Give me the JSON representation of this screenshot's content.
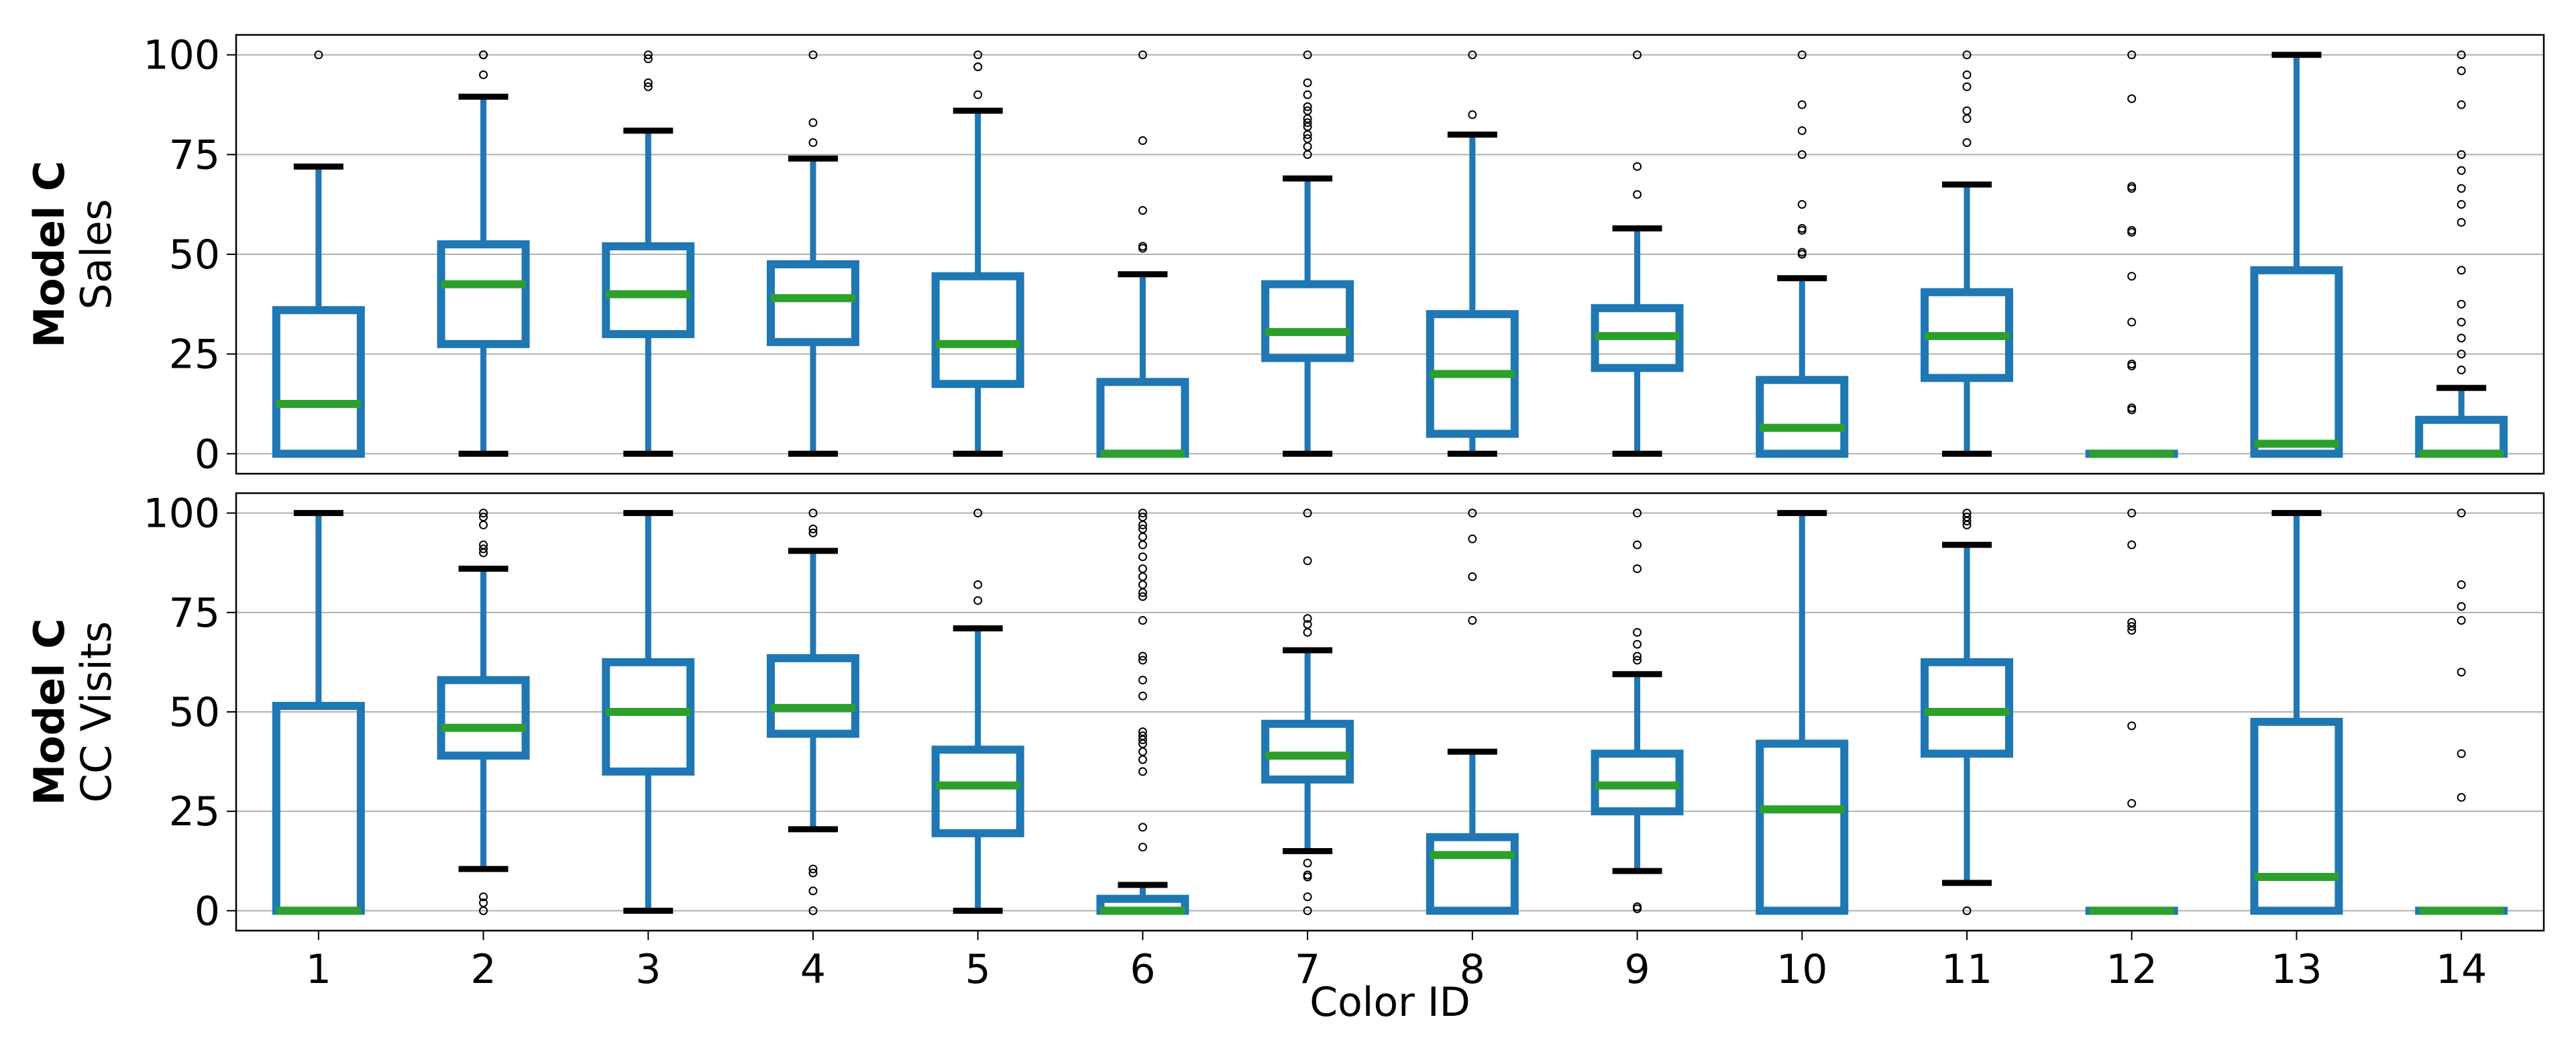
{
  "chart_data": {
    "type": "boxplot",
    "xlabel": "Color ID",
    "categories": [
      "1",
      "2",
      "3",
      "4",
      "5",
      "6",
      "7",
      "8",
      "9",
      "10",
      "11",
      "12",
      "13",
      "14"
    ],
    "ylim": [
      -5,
      105
    ],
    "yticks": [
      0,
      25,
      50,
      75,
      100
    ],
    "colors": {
      "box": "#1f77b4",
      "median": "#2ca02c",
      "cap": "#000000",
      "grid": "#b0b0b0"
    },
    "panels": [
      {
        "name": "sales",
        "ylabel_bold": "Model C",
        "ylabel": "Sales",
        "boxes": [
          {
            "category": "1",
            "whislo": 0,
            "q1": 0,
            "med": 12.5,
            "q3": 36,
            "whishi": 72,
            "fliers": [
              100
            ]
          },
          {
            "category": "2",
            "whislo": 0,
            "q1": 27.5,
            "med": 42.5,
            "q3": 52.5,
            "whishi": 89.5,
            "fliers": [
              95,
              100,
              100
            ]
          },
          {
            "category": "3",
            "whislo": 0,
            "q1": 30,
            "med": 40,
            "q3": 52,
            "whishi": 81,
            "fliers": [
              92,
              93,
              99,
              100
            ]
          },
          {
            "category": "4",
            "whislo": 0,
            "q1": 28,
            "med": 39,
            "q3": 47.5,
            "whishi": 74,
            "fliers": [
              78,
              83,
              100
            ]
          },
          {
            "category": "5",
            "whislo": 0,
            "q1": 17.5,
            "med": 27.5,
            "q3": 44.5,
            "whishi": 86,
            "fliers": [
              90,
              97,
              97,
              100
            ]
          },
          {
            "category": "6",
            "whislo": 0,
            "q1": 0,
            "med": 0,
            "q3": 18,
            "whishi": 45,
            "fliers": [
              51.5,
              52,
              61,
              78.5,
              100
            ]
          },
          {
            "category": "7",
            "whislo": 0,
            "q1": 24,
            "med": 30.5,
            "q3": 42.5,
            "whishi": 69,
            "fliers": [
              75,
              77,
              79,
              80,
              82,
              83,
              84,
              86,
              87,
              90,
              93,
              100
            ]
          },
          {
            "category": "8",
            "whislo": 0,
            "q1": 5,
            "med": 20,
            "q3": 35,
            "whishi": 80,
            "fliers": [
              85,
              100
            ]
          },
          {
            "category": "9",
            "whislo": 0,
            "q1": 21.5,
            "med": 29.5,
            "q3": 36.5,
            "whishi": 56.5,
            "fliers": [
              65,
              72,
              100
            ]
          },
          {
            "category": "10",
            "whislo": 0,
            "q1": 0,
            "med": 6.5,
            "q3": 18.5,
            "whishi": 44,
            "fliers": [
              50,
              50.5,
              56,
              56.5,
              62.5,
              75,
              81,
              87.5,
              100
            ]
          },
          {
            "category": "11",
            "whislo": 0,
            "q1": 19,
            "med": 29.5,
            "q3": 40.5,
            "whishi": 67.5,
            "fliers": [
              78,
              84,
              86,
              92,
              95,
              100
            ]
          },
          {
            "category": "12",
            "whislo": 0,
            "q1": 0,
            "med": 0,
            "q3": 0,
            "whishi": 0,
            "fliers": [
              11,
              11.5,
              22,
              22.5,
              33,
              44.5,
              55.5,
              56,
              66.5,
              67,
              89,
              100
            ]
          },
          {
            "category": "13",
            "whislo": 0,
            "q1": 0,
            "med": 2.5,
            "q3": 46,
            "whishi": 100,
            "fliers": []
          },
          {
            "category": "14",
            "whislo": 0,
            "q1": 0,
            "med": 0,
            "q3": 8.5,
            "whishi": 16.5,
            "fliers": [
              21,
              25,
              29,
              33,
              37.5,
              46,
              58,
              62.5,
              66.5,
              71,
              75,
              87.5,
              96,
              100
            ]
          }
        ]
      },
      {
        "name": "cc_visits",
        "ylabel_bold": "Model C",
        "ylabel": "CC Visits",
        "boxes": [
          {
            "category": "1",
            "whislo": 0,
            "q1": 0,
            "med": 0,
            "q3": 51.5,
            "whishi": 100,
            "fliers": []
          },
          {
            "category": "2",
            "whislo": 10.5,
            "q1": 39,
            "med": 46,
            "q3": 58,
            "whishi": 86,
            "fliers": [
              0,
              2,
              3.5,
              90,
              91,
              92,
              97,
              99,
              100
            ]
          },
          {
            "category": "3",
            "whislo": 0,
            "q1": 35,
            "med": 50,
            "q3": 62.5,
            "whishi": 100,
            "fliers": []
          },
          {
            "category": "4",
            "whislo": 20.5,
            "q1": 44.5,
            "med": 51,
            "q3": 63.5,
            "whishi": 90.5,
            "fliers": [
              0,
              5,
              9.5,
              10.5,
              95,
              96,
              100
            ]
          },
          {
            "category": "5",
            "whislo": 0,
            "q1": 19.5,
            "med": 31.5,
            "q3": 40.5,
            "whishi": 71,
            "fliers": [
              78,
              82,
              100
            ]
          },
          {
            "category": "6",
            "whislo": 0,
            "q1": 0,
            "med": 0,
            "q3": 3,
            "whishi": 6.5,
            "fliers": [
              16,
              21,
              35,
              38,
              40,
              42,
              43,
              44,
              45,
              54,
              58,
              63,
              64,
              73,
              79,
              80,
              82,
              84,
              86,
              89,
              92,
              94,
              96,
              97,
              99,
              100
            ]
          },
          {
            "category": "7",
            "whislo": 15,
            "q1": 33,
            "med": 39,
            "q3": 47,
            "whishi": 65.5,
            "fliers": [
              0,
              3.5,
              8.5,
              9,
              12,
              70,
              72,
              73.5,
              88,
              100
            ]
          },
          {
            "category": "8",
            "whislo": 0,
            "q1": 0,
            "med": 14,
            "q3": 18.5,
            "whishi": 40,
            "fliers": [
              73,
              84,
              93.5,
              100
            ]
          },
          {
            "category": "9",
            "whislo": 10,
            "q1": 25,
            "med": 31.5,
            "q3": 39.5,
            "whishi": 59.5,
            "fliers": [
              0.5,
              1,
              63,
              64,
              67,
              70,
              86,
              92,
              100
            ]
          },
          {
            "category": "10",
            "whislo": 0,
            "q1": 0,
            "med": 25.5,
            "q3": 42,
            "whishi": 100,
            "fliers": []
          },
          {
            "category": "11",
            "whislo": 7,
            "q1": 39.5,
            "med": 50,
            "q3": 62.5,
            "whishi": 92,
            "fliers": [
              0,
              97,
              98,
              99,
              100
            ]
          },
          {
            "category": "12",
            "whislo": 0,
            "q1": 0,
            "med": 0,
            "q3": 0,
            "whishi": 0,
            "fliers": [
              27,
              46.5,
              70.5,
              71.5,
              72.5,
              92,
              100
            ]
          },
          {
            "category": "13",
            "whislo": 0,
            "q1": 0,
            "med": 8.5,
            "q3": 47.5,
            "whishi": 100,
            "fliers": []
          },
          {
            "category": "14",
            "whislo": 0,
            "q1": 0,
            "med": 0,
            "q3": 0,
            "whishi": 0,
            "fliers": [
              28.5,
              39.5,
              60,
              73,
              76.5,
              82,
              100
            ]
          }
        ]
      }
    ]
  }
}
